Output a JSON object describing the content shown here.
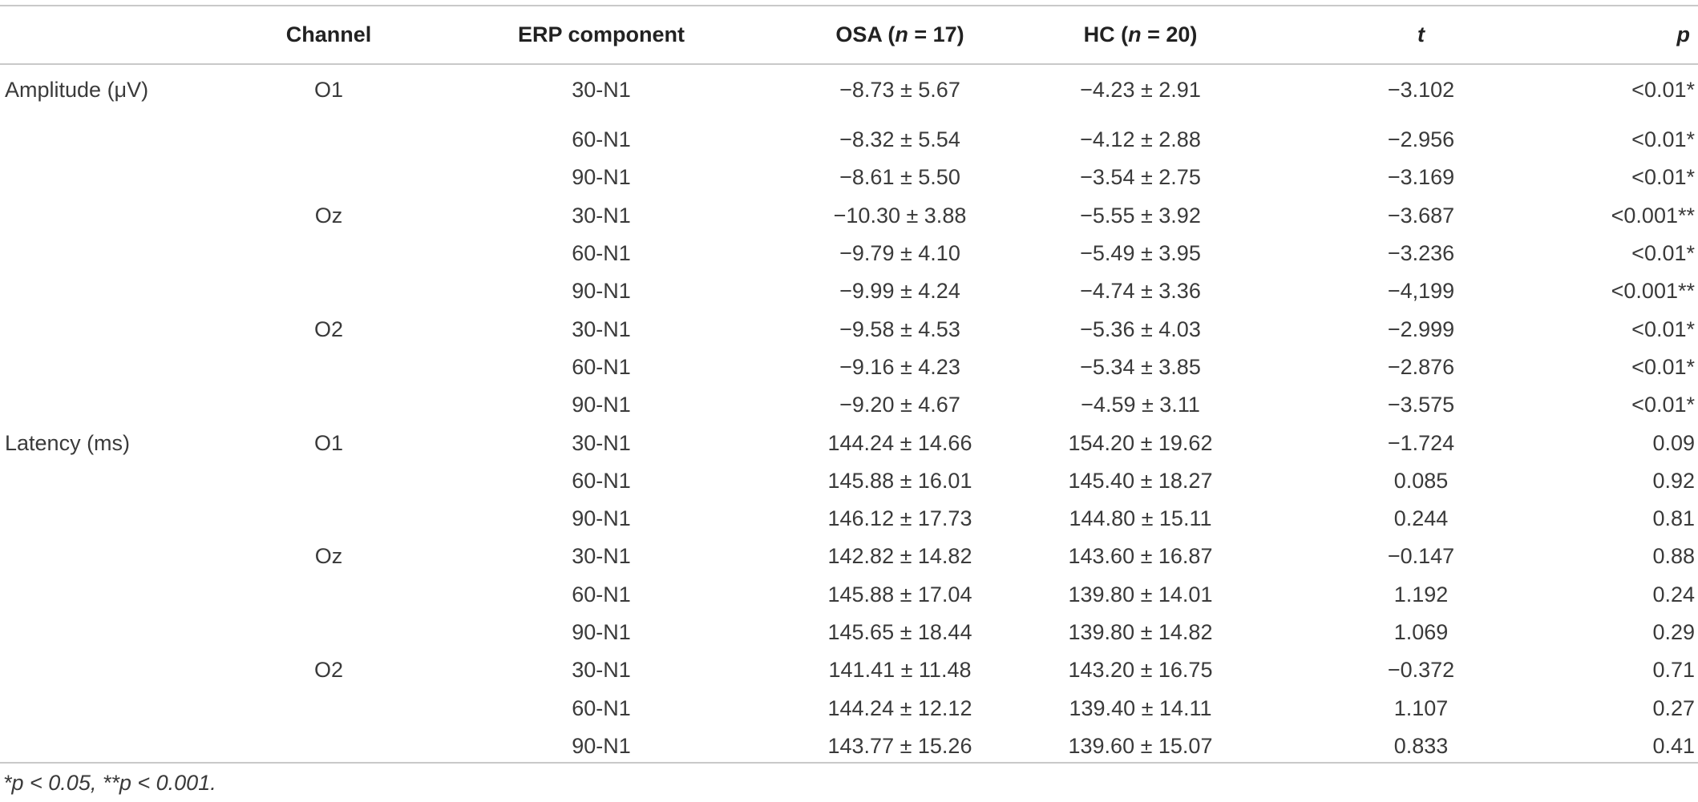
{
  "table": {
    "headers": {
      "group": "",
      "channel": "Channel",
      "component": "ERP component",
      "osa_prefix": "OSA (",
      "osa_n": "n",
      "osa_suffix": " = 17)",
      "hc_prefix": "HC (",
      "hc_n": "n",
      "hc_suffix": " = 20)",
      "t": "t",
      "p": "p"
    },
    "rows": [
      {
        "group": "Amplitude (μV)",
        "channel": "O1",
        "component": "30-N1",
        "osa": "−8.73 ± 5.67",
        "hc": "−4.23 ± 2.91",
        "t": "−3.102",
        "p": "<0.01*"
      },
      {
        "group": "",
        "channel": "",
        "component": "60-N1",
        "osa": "−8.32 ± 5.54",
        "hc": "−4.12 ± 2.88",
        "t": "−2.956",
        "p": "<0.01*"
      },
      {
        "group": "",
        "channel": "",
        "component": "90-N1",
        "osa": "−8.61 ± 5.50",
        "hc": "−3.54 ± 2.75",
        "t": "−3.169",
        "p": "<0.01*"
      },
      {
        "group": "",
        "channel": "Oz",
        "component": "30-N1",
        "osa": "−10.30 ± 3.88",
        "hc": "−5.55 ± 3.92",
        "t": "−3.687",
        "p": "<0.001**"
      },
      {
        "group": "",
        "channel": "",
        "component": "60-N1",
        "osa": "−9.79 ± 4.10",
        "hc": "−5.49 ± 3.95",
        "t": "−3.236",
        "p": "<0.01*"
      },
      {
        "group": "",
        "channel": "",
        "component": "90-N1",
        "osa": "−9.99 ± 4.24",
        "hc": "−4.74 ± 3.36",
        "t": "−4,199",
        "p": "<0.001**"
      },
      {
        "group": "",
        "channel": "O2",
        "component": "30-N1",
        "osa": "−9.58 ± 4.53",
        "hc": "−5.36 ± 4.03",
        "t": "−2.999",
        "p": "<0.01*"
      },
      {
        "group": "",
        "channel": "",
        "component": "60-N1",
        "osa": "−9.16 ± 4.23",
        "hc": "−5.34 ± 3.85",
        "t": "−2.876",
        "p": "<0.01*"
      },
      {
        "group": "",
        "channel": "",
        "component": "90-N1",
        "osa": "−9.20 ± 4.67",
        "hc": "−4.59 ± 3.11",
        "t": "−3.575",
        "p": "<0.01*"
      },
      {
        "group": "Latency (ms)",
        "channel": "O1",
        "component": "30-N1",
        "osa": "144.24 ± 14.66",
        "hc": "154.20 ± 19.62",
        "t": "−1.724",
        "p": "0.09"
      },
      {
        "group": "",
        "channel": "",
        "component": "60-N1",
        "osa": "145.88 ± 16.01",
        "hc": "145.40 ± 18.27",
        "t": "0.085",
        "p": "0.92"
      },
      {
        "group": "",
        "channel": "",
        "component": "90-N1",
        "osa": "146.12 ± 17.73",
        "hc": "144.80 ± 15.11",
        "t": "0.244",
        "p": "0.81"
      },
      {
        "group": "",
        "channel": "Oz",
        "component": "30-N1",
        "osa": "142.82 ± 14.82",
        "hc": "143.60 ± 16.87",
        "t": "−0.147",
        "p": "0.88"
      },
      {
        "group": "",
        "channel": "",
        "component": "60-N1",
        "osa": "145.88 ± 17.04",
        "hc": "139.80 ± 14.01",
        "t": "1.192",
        "p": "0.24"
      },
      {
        "group": "",
        "channel": "",
        "component": "90-N1",
        "osa": "145.65 ± 18.44",
        "hc": "139.80 ± 14.82",
        "t": "1.069",
        "p": "0.29"
      },
      {
        "group": "",
        "channel": "O2",
        "component": "30-N1",
        "osa": "141.41 ± 11.48",
        "hc": "143.20 ± 16.75",
        "t": "−0.372",
        "p": "0.71"
      },
      {
        "group": "",
        "channel": "",
        "component": "60-N1",
        "osa": "144.24 ± 12.12",
        "hc": "139.40 ± 14.11",
        "t": "1.107",
        "p": "0.27"
      },
      {
        "group": "",
        "channel": "",
        "component": "90-N1",
        "osa": "143.77 ± 15.26",
        "hc": "139.60 ± 15.07",
        "t": "0.833",
        "p": "0.41"
      }
    ]
  },
  "footnote": "*p < 0.05, **p < 0.001."
}
